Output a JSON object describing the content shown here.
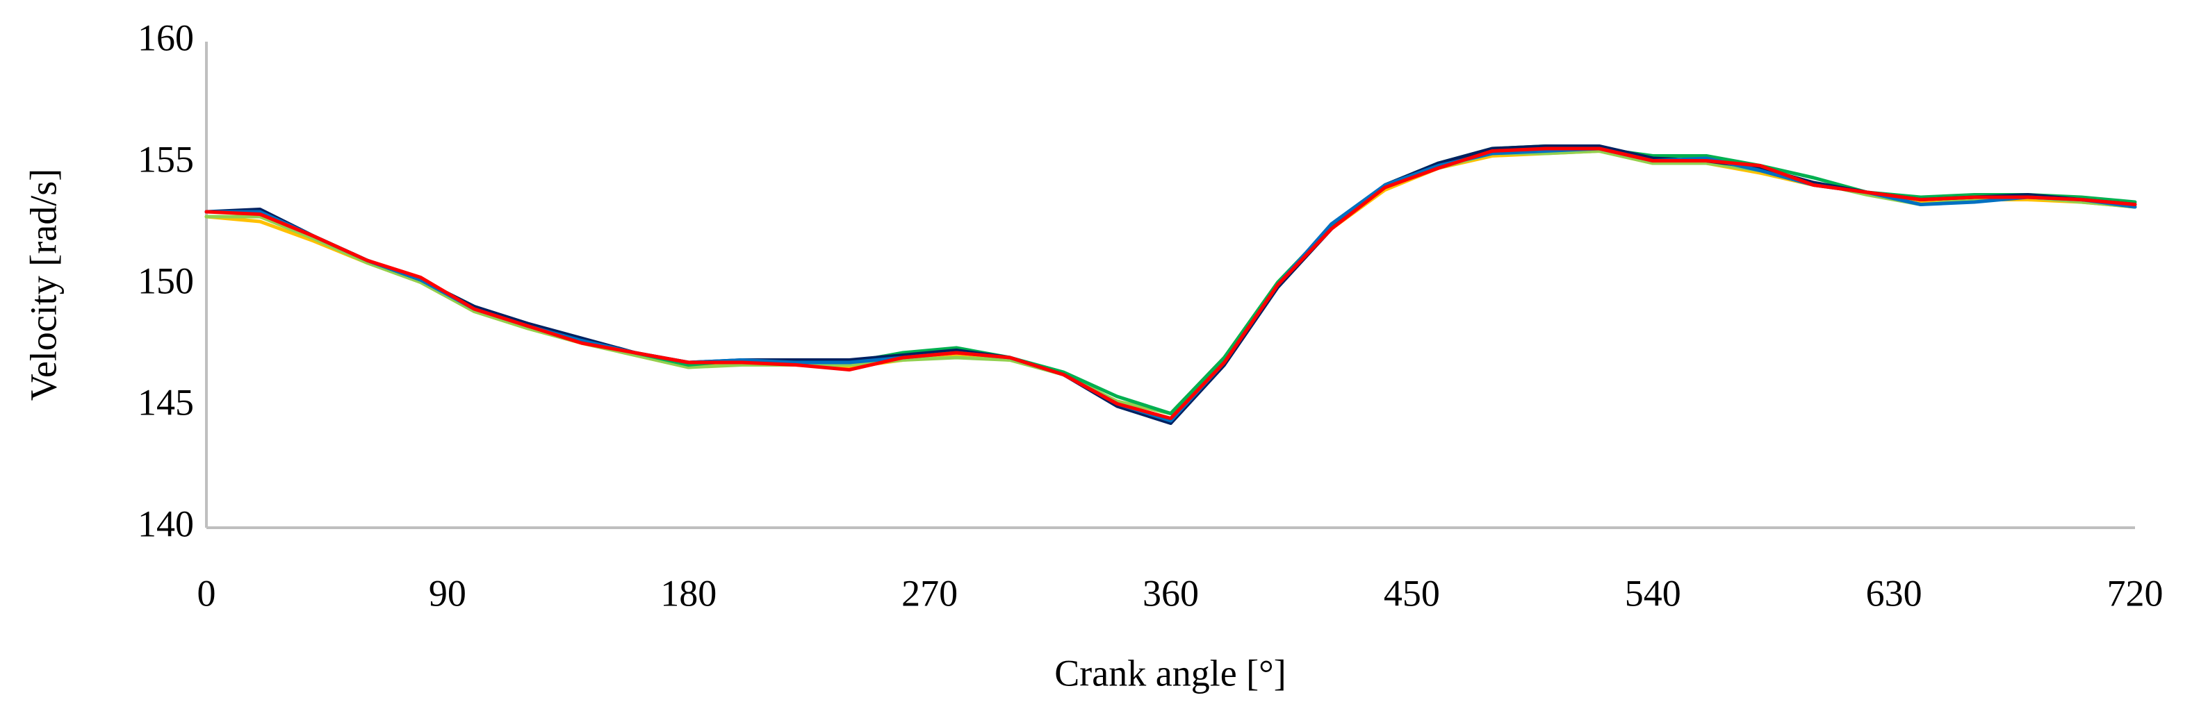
{
  "chart_data": {
    "type": "line",
    "x_label": "Crank angle [°]",
    "y_label": "Velocity [rad/s]",
    "x": [
      0,
      20,
      40,
      60,
      80,
      100,
      120,
      140,
      160,
      180,
      200,
      220,
      240,
      260,
      280,
      300,
      320,
      340,
      360,
      380,
      400,
      420,
      440,
      460,
      480,
      500,
      520,
      540,
      560,
      580,
      600,
      620,
      640,
      660,
      680,
      700,
      720
    ],
    "series": [
      {
        "color": "#ffc000",
        "values": [
          152.8,
          152.6,
          151.8,
          150.9,
          150.1,
          148.9,
          148.2,
          147.6,
          147.1,
          146.6,
          146.8,
          146.7,
          146.6,
          146.9,
          147.1,
          146.9,
          146.3,
          145.2,
          144.7,
          147.0,
          150.1,
          152.3,
          153.9,
          154.8,
          155.3,
          155.4,
          155.5,
          155.0,
          155.0,
          154.6,
          154.1,
          153.8,
          153.4,
          153.5,
          153.5,
          153.4,
          153.2
        ]
      },
      {
        "color": "#92d050",
        "values": [
          152.8,
          152.8,
          151.9,
          150.9,
          150.1,
          148.9,
          148.2,
          147.6,
          147.1,
          146.6,
          146.7,
          146.7,
          146.7,
          146.9,
          147.0,
          146.9,
          146.3,
          145.2,
          144.7,
          147.0,
          150.1,
          152.4,
          154.0,
          154.8,
          155.4,
          155.4,
          155.5,
          155.0,
          155.0,
          154.7,
          154.2,
          153.7,
          153.3,
          153.5,
          153.6,
          153.4,
          153.2
        ]
      },
      {
        "color": "#00b050",
        "values": [
          153.0,
          153.0,
          152.0,
          151.0,
          150.2,
          149.1,
          148.3,
          147.7,
          147.2,
          146.7,
          146.9,
          146.9,
          146.8,
          147.2,
          147.4,
          147.0,
          146.4,
          145.4,
          144.7,
          147.0,
          150.1,
          152.4,
          154.1,
          155.0,
          155.6,
          155.7,
          155.6,
          155.3,
          155.3,
          154.9,
          154.4,
          153.8,
          153.6,
          153.7,
          153.7,
          153.6,
          153.4
        ]
      },
      {
        "color": "#002060",
        "values": [
          153.0,
          153.1,
          152.0,
          151.0,
          150.2,
          149.1,
          148.4,
          147.8,
          147.2,
          146.8,
          146.9,
          146.9,
          146.9,
          147.1,
          147.3,
          147.0,
          146.3,
          145.0,
          144.3,
          146.7,
          149.9,
          152.3,
          154.1,
          155.0,
          155.6,
          155.7,
          155.7,
          155.2,
          155.1,
          154.8,
          154.2,
          153.8,
          153.5,
          153.6,
          153.7,
          153.5,
          153.3
        ]
      },
      {
        "color": "#0070c0",
        "values": [
          153.0,
          153.0,
          152.0,
          151.0,
          150.2,
          149.0,
          148.3,
          147.7,
          147.2,
          146.8,
          146.9,
          146.8,
          146.8,
          147.0,
          147.2,
          147.0,
          146.3,
          145.1,
          144.4,
          146.8,
          150.0,
          152.5,
          154.1,
          154.9,
          155.4,
          155.5,
          155.6,
          155.1,
          155.2,
          154.7,
          154.1,
          153.8,
          153.3,
          153.4,
          153.6,
          153.5,
          153.2
        ]
      },
      {
        "color": "#ff0000",
        "values": [
          153.0,
          152.9,
          152.0,
          151.0,
          150.3,
          149.0,
          148.3,
          147.6,
          147.2,
          146.8,
          146.8,
          146.7,
          146.5,
          147.0,
          147.2,
          147.0,
          146.3,
          145.1,
          144.5,
          146.8,
          150.0,
          152.3,
          154.0,
          154.8,
          155.5,
          155.6,
          155.6,
          155.1,
          155.1,
          154.9,
          154.1,
          153.8,
          153.5,
          153.6,
          153.6,
          153.5,
          153.3
        ]
      }
    ],
    "xlim": [
      0,
      720
    ],
    "xticks": [
      0,
      90,
      180,
      270,
      360,
      450,
      540,
      630,
      720
    ],
    "ylim": [
      140,
      160
    ],
    "yticks": [
      140,
      145,
      150,
      155,
      160
    ],
    "grid": false
  }
}
